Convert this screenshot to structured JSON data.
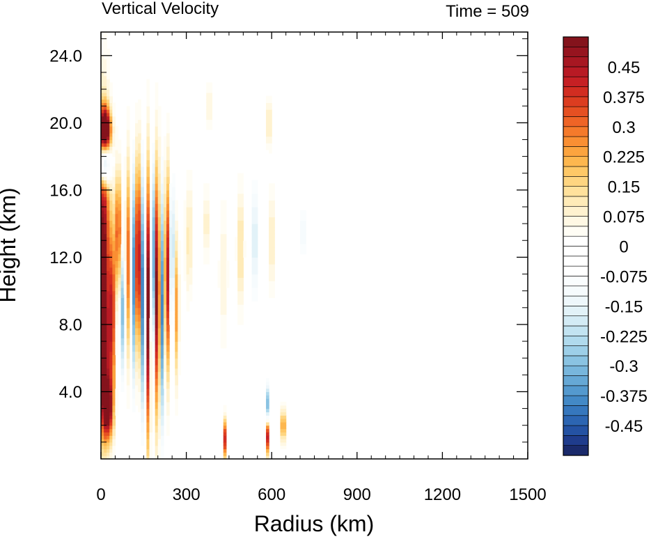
{
  "chart_data": {
    "type": "heatmap",
    "title": "Vertical Velocity",
    "subtitle": "Time = 509",
    "xlabel": "Radius (km)",
    "ylabel": "Height (km)",
    "xlim": [
      0,
      1500
    ],
    "ylim": [
      0,
      25.4
    ],
    "xticks": [
      0,
      300,
      600,
      900,
      1200,
      1500
    ],
    "xtick_labels": [
      "0",
      "300",
      "600",
      "900",
      "1200",
      "1500"
    ],
    "yticks": [
      4,
      8,
      12,
      16,
      20,
      24
    ],
    "ytick_labels": [
      "4.0",
      "8.0",
      "12.0",
      "16.0",
      "20.0",
      "24.0"
    ],
    "grid": false,
    "colorbar": {
      "position": "right",
      "levels": [
        -0.525,
        -0.5,
        -0.475,
        -0.45,
        -0.425,
        -0.4,
        -0.375,
        -0.35,
        -0.325,
        -0.3,
        -0.275,
        -0.25,
        -0.225,
        -0.2,
        -0.175,
        -0.15,
        -0.125,
        -0.1,
        -0.075,
        -0.05,
        -0.025,
        0,
        0.025,
        0.05,
        0.075,
        0.1,
        0.125,
        0.15,
        0.175,
        0.2,
        0.225,
        0.25,
        0.275,
        0.3,
        0.325,
        0.35,
        0.375,
        0.4,
        0.425,
        0.45,
        0.475,
        0.5,
        0.525
      ],
      "labels": [
        "0.45",
        "0.375",
        "0.3",
        "0.225",
        "0.15",
        "0.075",
        "0",
        "-0.075",
        "-0.15",
        "-0.225",
        "-0.3",
        "-0.375",
        "-0.45"
      ],
      "label_values": [
        0.45,
        0.375,
        0.3,
        0.225,
        0.15,
        0.075,
        0,
        -0.075,
        -0.15,
        -0.225,
        -0.3,
        -0.375,
        -0.45
      ],
      "colors": [
        "#1a2a6b",
        "#1f3c8c",
        "#2452a3",
        "#2c65b2",
        "#3677bd",
        "#4389c6",
        "#5499ce",
        "#66a8d5",
        "#78b6dc",
        "#8ac3e2",
        "#9dcfe8",
        "#b0daed",
        "#c2e3f1",
        "#d3ebf5",
        "#e2f2f8",
        "#eef7fb",
        "#f6fbfd",
        "#fafdfe",
        "#ffffff",
        "#ffffff",
        "#ffffff",
        "#ffffff",
        "#fffdf5",
        "#fff8e4",
        "#fff2cf",
        "#ffebb8",
        "#ffe19c",
        "#fed581",
        "#fec867",
        "#fdb74f",
        "#fca43f",
        "#fa8f33",
        "#f57a2b",
        "#ef6426",
        "#e65022",
        "#dc3d20",
        "#d22d21",
        "#c62024",
        "#b81a24",
        "#a71722",
        "#96141f",
        "#84131c"
      ]
    },
    "features": [
      {
        "r": 8,
        "z": 12.0,
        "sr": 16,
        "sz": 5.5,
        "w": 0.55
      },
      {
        "r": 10,
        "z": 6.0,
        "sr": 14,
        "sz": 3.0,
        "w": 0.4
      },
      {
        "r": 15,
        "z": 19.6,
        "sr": 14,
        "sz": 0.9,
        "w": 0.6
      },
      {
        "r": 12,
        "z": 17.6,
        "sr": 14,
        "sz": 0.9,
        "w": -0.5
      },
      {
        "r": 25,
        "z": 3.0,
        "sr": 12,
        "sz": 1.2,
        "w": 0.45
      },
      {
        "r": 40,
        "z": 8.5,
        "sr": 6,
        "sz": 3.5,
        "w": 0.4
      },
      {
        "r": 60,
        "z": 13.5,
        "sr": 8,
        "sz": 2.5,
        "w": 0.35
      },
      {
        "r": 75,
        "z": 9.0,
        "sr": 5,
        "sz": 3.0,
        "w": -0.3
      },
      {
        "r": 95,
        "z": 12.0,
        "sr": 6,
        "sz": 4.0,
        "w": 0.3
      },
      {
        "r": 115,
        "z": 11.0,
        "sr": 5,
        "sz": 4.5,
        "w": -0.4
      },
      {
        "r": 130,
        "z": 12.0,
        "sr": 6,
        "sz": 4.0,
        "w": 0.6
      },
      {
        "r": 148,
        "z": 10.0,
        "sr": 5,
        "sz": 5.0,
        "w": -0.5
      },
      {
        "r": 165,
        "z": 9.0,
        "sr": 6,
        "sz": 5.5,
        "w": 0.55
      },
      {
        "r": 182,
        "z": 12.0,
        "sr": 5,
        "sz": 4.0,
        "w": -0.45
      },
      {
        "r": 198,
        "z": 10.0,
        "sr": 6,
        "sz": 5.0,
        "w": 0.6
      },
      {
        "r": 215,
        "z": 9.0,
        "sr": 5,
        "sz": 5.0,
        "w": -0.4
      },
      {
        "r": 232,
        "z": 11.0,
        "sr": 6,
        "sz": 4.0,
        "w": 0.5
      },
      {
        "r": 250,
        "z": 12.0,
        "sr": 5,
        "sz": 3.5,
        "w": -0.35
      },
      {
        "r": 265,
        "z": 9.0,
        "sr": 6,
        "sz": 3.0,
        "w": 0.25
      },
      {
        "r": 310,
        "z": 13.0,
        "sr": 10,
        "sz": 2.5,
        "w": 0.12
      },
      {
        "r": 330,
        "z": 10.0,
        "sr": 8,
        "sz": 3.0,
        "w": -0.08
      },
      {
        "r": 370,
        "z": 14.0,
        "sr": 8,
        "sz": 1.5,
        "w": 0.1
      },
      {
        "r": 380,
        "z": 21.0,
        "sr": 8,
        "sz": 1.0,
        "w": 0.08
      },
      {
        "r": 430,
        "z": 11.0,
        "sr": 10,
        "sz": 3.0,
        "w": 0.08
      },
      {
        "r": 490,
        "z": 12.5,
        "sr": 8,
        "sz": 2.5,
        "w": 0.15
      },
      {
        "r": 540,
        "z": 13.0,
        "sr": 10,
        "sz": 3.0,
        "w": -0.18
      },
      {
        "r": 600,
        "z": 13.0,
        "sr": 8,
        "sz": 2.0,
        "w": 0.12
      },
      {
        "r": 590,
        "z": 20.0,
        "sr": 8,
        "sz": 1.0,
        "w": 0.12
      },
      {
        "r": 710,
        "z": 13.5,
        "sr": 12,
        "sz": 1.5,
        "w": -0.12
      },
      {
        "r": 720,
        "z": 20.0,
        "sr": 10,
        "sz": 1.0,
        "w": -0.08
      },
      {
        "r": 585,
        "z": 3.0,
        "sr": 4,
        "sz": 1.0,
        "w": -0.35
      },
      {
        "r": 585,
        "z": 1.5,
        "sr": 4,
        "sz": 0.8,
        "w": 0.5
      },
      {
        "r": 640,
        "z": 2.0,
        "sr": 4,
        "sz": 0.7,
        "w": 0.45
      },
      {
        "r": 435,
        "z": 1.2,
        "sr": 4,
        "sz": 0.8,
        "w": 0.4
      }
    ]
  }
}
